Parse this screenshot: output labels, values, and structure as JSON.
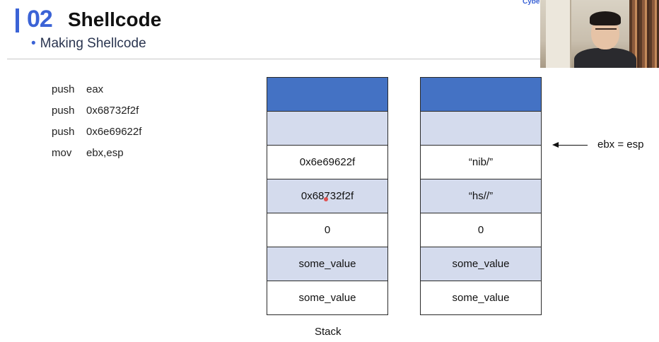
{
  "header": {
    "number": "02",
    "title": "Shellcode",
    "subtitle": "Making Shellcode",
    "brand": "Cybe"
  },
  "code": [
    {
      "op": "push",
      "arg": "eax"
    },
    {
      "op": "push",
      "arg": "0x68732f2f"
    },
    {
      "op": "push",
      "arg": "0x6e69622f"
    },
    {
      "op": "mov",
      "arg": "ebx,esp"
    }
  ],
  "stack_left": [
    "",
    "",
    "0x6e69622f",
    "0x68732f2f",
    "0",
    "some_value",
    "some_value"
  ],
  "stack_right": [
    "",
    "",
    "“nib/”",
    "“hs//”",
    "0",
    "some_value",
    "some_value"
  ],
  "stack_caption": "Stack",
  "pointer": {
    "label": "ebx = esp"
  },
  "colors": {
    "accent": "#3b63d6",
    "cell_dark": "#4472c4",
    "cell_light": "#d4dbed"
  }
}
